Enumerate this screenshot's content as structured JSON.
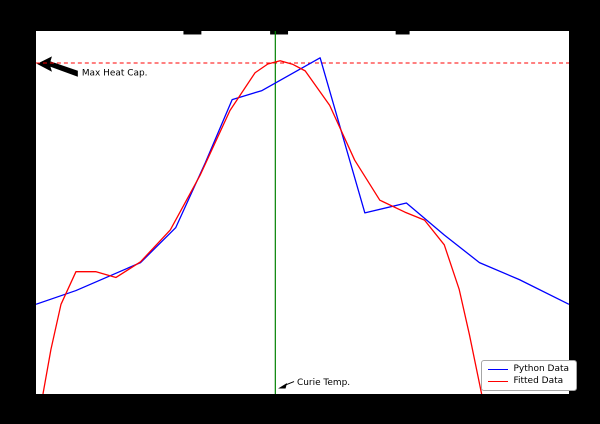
{
  "figure": {
    "bg_color": "#000000",
    "plot_bg": "#ffffff"
  },
  "annotations": {
    "max_heat_cap": "Max Heat Cap.",
    "curie_temp": "Curie Temp."
  },
  "chart_data": {
    "type": "line",
    "title": "",
    "xlabel": "",
    "ylabel": "",
    "xlim": [
      0,
      100
    ],
    "ylim": [
      0,
      100
    ],
    "grid": false,
    "legend_position": "lower right",
    "series": [
      {
        "name": "Python Data",
        "color": "#0000ff",
        "x": [
          0,
          7.5,
          19.6,
          26.2,
          31.8,
          36.8,
          42.4,
          53.3,
          61.7,
          69.5,
          76.6,
          83.2,
          90.7,
          100
        ],
        "y": [
          24.7,
          28.5,
          36.2,
          45.8,
          63.8,
          81.1,
          83.6,
          92.6,
          49.9,
          52.6,
          43.8,
          36.2,
          31.5,
          24.7
        ]
      },
      {
        "name": "Fitted Data",
        "color": "#ff0000",
        "x": [
          1.3,
          2.8,
          4.7,
          7.5,
          11.2,
          15.0,
          19.6,
          25.2,
          30.8,
          36.4,
          41.1,
          43.5,
          45.8,
          48.2,
          50.5,
          55.1,
          59.8,
          64.5,
          69.2,
          72.9,
          76.6,
          79.4,
          81.3,
          83.6
        ],
        "y": [
          0,
          12.3,
          24.7,
          33.7,
          33.7,
          32.1,
          36.4,
          45.2,
          60.3,
          78.1,
          88.5,
          90.9,
          91.8,
          90.8,
          89.0,
          79.5,
          64.4,
          53.4,
          50.1,
          47.9,
          41.1,
          28.8,
          16.4,
          0
        ]
      }
    ],
    "reference_lines": {
      "max_heat_cap": {
        "orientation": "horizontal",
        "y": 91.2,
        "color": "#ff0000",
        "style": "dashed",
        "label": "Max Heat Cap."
      },
      "curie_temp": {
        "orientation": "vertical",
        "x": 44.9,
        "color": "#008000",
        "style": "solid",
        "label": "Curie Temp."
      }
    }
  }
}
